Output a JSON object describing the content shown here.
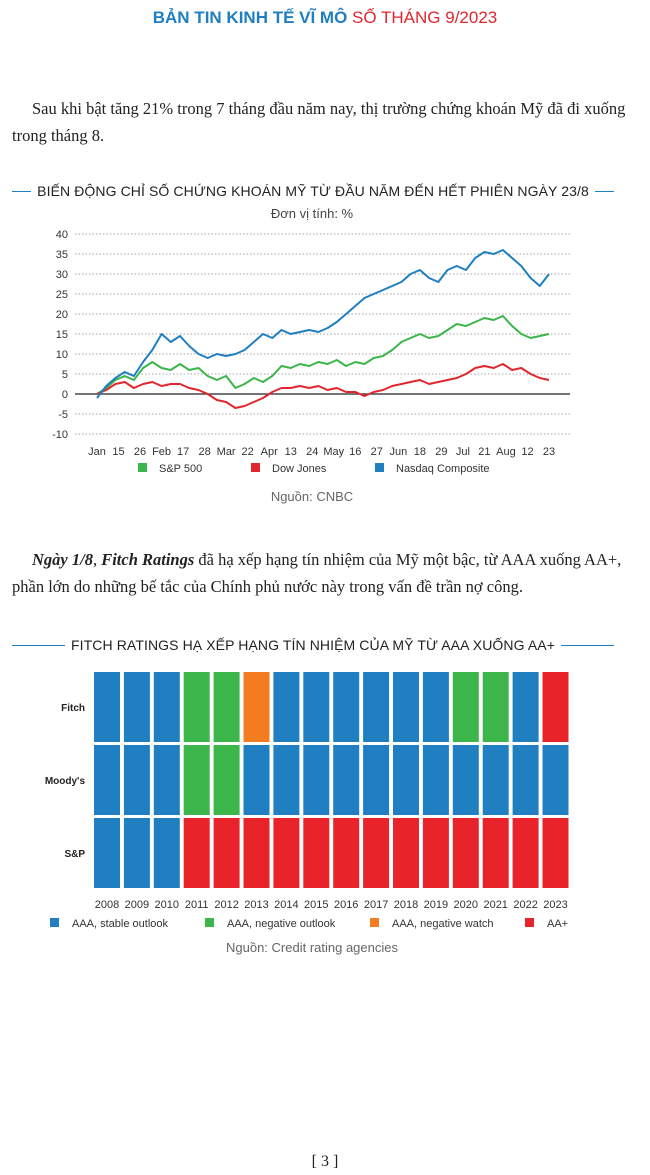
{
  "header": {
    "title_main": "BẢN TIN KINH TẾ VĨ MÔ",
    "title_issue": "SỐ THÁNG 9/2023"
  },
  "paragraph1": "Sau khi bật tăng 21% trong 7 tháng đầu năm nay, thị trường chứng khoán Mỹ đã đi xuống trong tháng 8.",
  "paragraph2": {
    "em1": "Ngày 1/8",
    "sep": ", ",
    "em2": "Fitch Ratings",
    "rest": " đã hạ xếp hạng tín nhiệm của Mỹ một bậc, từ AAA xuống AA+, phần lớn do những bế tắc của Chính phủ nước này trong vấn đề trần nợ công."
  },
  "page_number": "[ 3 ]",
  "chart_data": [
    {
      "type": "line",
      "title": "BIẾN ĐỘNG CHỈ SỐ CHỨNG KHOÁN MỸ TỪ ĐẦU NĂM ĐẾN HẾT PHIÊN NGÀY 23/8",
      "unit_label": "Đơn vị tính: %",
      "source": "Nguồn: CNBC",
      "x_tick_labels": [
        "Jan",
        "15",
        "26",
        "Feb",
        "17",
        "28",
        "Mar",
        "22",
        "Apr",
        "13",
        "24",
        "May",
        "16",
        "27",
        "Jun",
        "18",
        "29",
        "Jul",
        "21",
        "Aug",
        "12",
        "23"
      ],
      "y_ticks": [
        40,
        35,
        30,
        25,
        20,
        15,
        10,
        5,
        0,
        -5,
        -10
      ],
      "ylim": [
        -10,
        40
      ],
      "grid": true,
      "legend_position": "bottom",
      "series": [
        {
          "name": "S&P 500",
          "color": "#3cb54a",
          "values": [
            0,
            1.5,
            3.5,
            4.5,
            3.5,
            6.5,
            8,
            6.5,
            6,
            7.5,
            6,
            6.5,
            4.5,
            3.5,
            4.5,
            1.5,
            2.5,
            4,
            3,
            4.5,
            7,
            6.5,
            7.5,
            7,
            8,
            7.5,
            8.5,
            7,
            8,
            7.5,
            9,
            9.5,
            11,
            13,
            14,
            15,
            14,
            14.5,
            16,
            17.5,
            17,
            18,
            19,
            18.5,
            19.5,
            17,
            15,
            14,
            14.5,
            15
          ]
        },
        {
          "name": "Dow Jones",
          "color": "#e0262e",
          "values": [
            0,
            1,
            2.5,
            3,
            1.5,
            2.5,
            3,
            2,
            2.5,
            2.5,
            1.5,
            1,
            0,
            -1.5,
            -2,
            -3.5,
            -3,
            -2,
            -1,
            0.5,
            1.5,
            1.5,
            2,
            1.5,
            2,
            1,
            1.5,
            0.5,
            0.5,
            -0.5,
            0.5,
            1,
            2,
            2.5,
            3,
            3.5,
            2.5,
            3,
            3.5,
            4,
            5,
            6.5,
            7,
            6.5,
            7.5,
            6,
            6.5,
            5,
            4,
            3.5
          ]
        },
        {
          "name": "Nasdaq Composite",
          "color": "#1f7fc0",
          "values": [
            -1,
            2,
            4,
            5.5,
            4.5,
            8,
            11,
            15,
            13,
            14.5,
            12,
            10,
            9,
            10,
            9.5,
            10,
            11,
            13,
            15,
            14,
            16,
            15,
            15.5,
            16,
            15.5,
            16.5,
            18,
            20,
            22,
            24,
            25,
            26,
            27,
            28,
            30,
            31,
            29,
            28,
            31,
            32,
            31,
            34,
            35.5,
            35,
            36,
            34,
            32,
            29,
            27,
            30
          ]
        }
      ]
    },
    {
      "type": "heatmap",
      "title": "FITCH RATINGS HẠ XẾP HẠNG TÍN NHIỆM CỦA MỸ TỪ AAA XUỐNG AA+",
      "source": "Nguồn: Credit rating agencies",
      "years": [
        "2008",
        "2009",
        "2010",
        "2011",
        "2012",
        "2013",
        "2014",
        "2015",
        "2016",
        "2017",
        "2018",
        "2019",
        "2020",
        "2021",
        "2022",
        "2023"
      ],
      "rows": [
        {
          "label": "Fitch",
          "ratings": [
            "stable",
            "stable",
            "stable",
            "neg_outlook",
            "neg_outlook",
            "neg_watch",
            "stable",
            "stable",
            "stable",
            "stable",
            "stable",
            "stable",
            "neg_outlook",
            "neg_outlook",
            "stable",
            "aaplus"
          ]
        },
        {
          "label": "Moody's",
          "ratings": [
            "stable",
            "stable",
            "stable",
            "neg_outlook",
            "neg_outlook",
            "stable",
            "stable",
            "stable",
            "stable",
            "stable",
            "stable",
            "stable",
            "stable",
            "stable",
            "stable",
            "stable"
          ]
        },
        {
          "label": "S&P",
          "ratings": [
            "stable",
            "stable",
            "stable",
            "aaplus",
            "aaplus",
            "aaplus",
            "aaplus",
            "aaplus",
            "aaplus",
            "aaplus",
            "aaplus",
            "aaplus",
            "aaplus",
            "aaplus",
            "aaplus",
            "aaplus"
          ]
        }
      ],
      "legend": [
        {
          "key": "stable",
          "label": "AAA, stable outlook",
          "color": "#1f7fc0"
        },
        {
          "key": "neg_outlook",
          "label": "AAA, negative outlook",
          "color": "#3cb54a"
        },
        {
          "key": "neg_watch",
          "label": "AAA, negative watch",
          "color": "#f47c20"
        },
        {
          "key": "aaplus",
          "label": "AA+",
          "color": "#e8232a"
        }
      ]
    }
  ]
}
